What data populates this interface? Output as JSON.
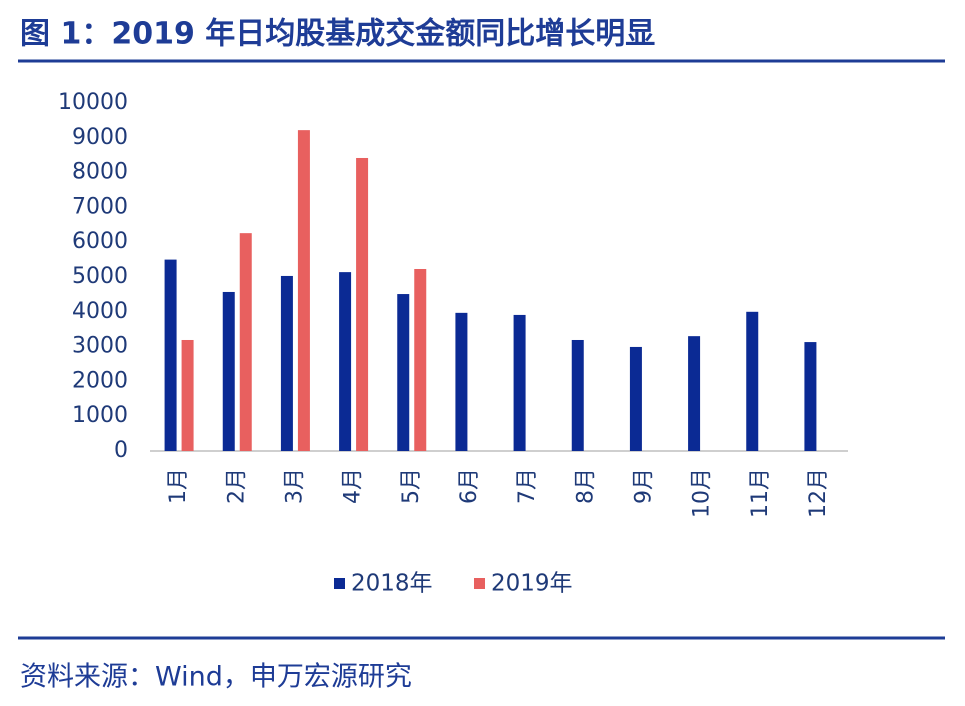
{
  "chart_data": {
    "type": "bar",
    "title": "图 1：2019 年日均股基成交金额同比增长明显",
    "source": "资料来源：Wind，申万宏源研究",
    "categories": [
      "1月",
      "2月",
      "3月",
      "4月",
      "5月",
      "6月",
      "7月",
      "8月",
      "9月",
      "10月",
      "11月",
      "12月"
    ],
    "series": [
      {
        "name": "2018年",
        "color": "#0b2a94",
        "values": [
          5500,
          4570,
          5030,
          5140,
          4510,
          3970,
          3910,
          3190,
          2990,
          3300,
          4000,
          3130
        ]
      },
      {
        "name": "2019年",
        "color": "#e8605f",
        "values": [
          3190,
          6260,
          9220,
          8420,
          5230,
          null,
          null,
          null,
          null,
          null,
          null,
          null
        ]
      }
    ],
    "ylim": [
      0,
      10000
    ],
    "yticks": [
      0,
      1000,
      2000,
      3000,
      4000,
      5000,
      6000,
      7000,
      8000,
      9000,
      10000
    ],
    "grid": false
  }
}
